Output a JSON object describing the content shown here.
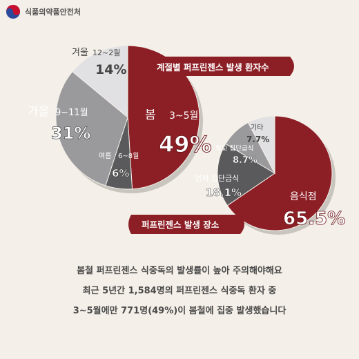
{
  "header": {
    "agency": "식품의약품안전처"
  },
  "chart_data": [
    {
      "type": "pie",
      "title": "계절별 퍼프린젠스 발생 환자수",
      "slices": [
        {
          "label": "봄",
          "sub": "3~5월",
          "value": 49,
          "display": "49%",
          "color": "#8c1f26"
        },
        {
          "label": "여름",
          "sub": "6~8월",
          "value": 6,
          "display": "6%",
          "color": "#5a5a5c"
        },
        {
          "label": "가을",
          "sub": "9~11월",
          "value": 31,
          "display": "31%",
          "color": "#9a999c"
        },
        {
          "label": "겨울",
          "sub": "12~2월",
          "value": 14,
          "display": "14%",
          "color": "#e1e0e2"
        }
      ]
    },
    {
      "type": "pie",
      "title": "퍼프린젠스 발생 장소",
      "slices": [
        {
          "label": "음식점",
          "value": 65.5,
          "display": "65.5%",
          "color": "#8c1f26"
        },
        {
          "label": "업체 집단급식",
          "value": 18.1,
          "display": "18.1%",
          "color": "#5a5a5c"
        },
        {
          "label": "학교 집단급식",
          "value": 8.7,
          "display": "8.7%",
          "color": "#9a999c"
        },
        {
          "label": "기타",
          "value": 7.7,
          "display": "7.7%",
          "color": "#e1e0e2"
        }
      ]
    }
  ],
  "caption": {
    "line1": "봄철 퍼프린젠스 식중독의 발생률이 높아 주의해야해요",
    "line2": "최근 5년간 1,584명의 퍼프린젠스 식중독 환자 중",
    "line3": "3~5월에만 771명(49%)이 봄철에 집중 발생했습니다"
  }
}
